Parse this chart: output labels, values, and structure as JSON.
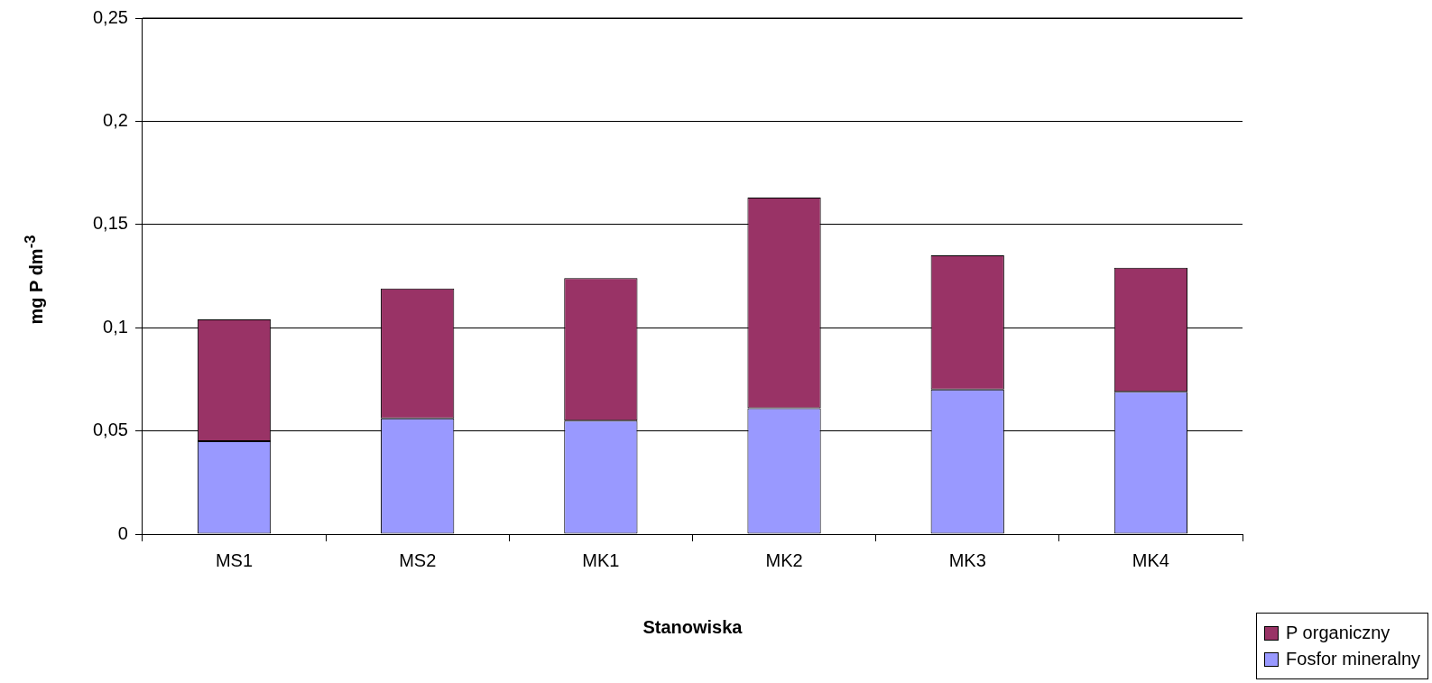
{
  "chart_data": {
    "type": "bar",
    "stacked": true,
    "xlabel": "Stanowiska",
    "ylabel": "mg P dm$^{-3}$",
    "categories": [
      "MS1",
      "MS2",
      "MK1",
      "MK2",
      "MK3",
      "MK4"
    ],
    "series": [
      {
        "name": "Fosfor mineralny",
        "color": "#9999ff",
        "values": [
          0.045,
          0.056,
          0.055,
          0.061,
          0.07,
          0.069
        ]
      },
      {
        "name": "P organiczny",
        "color": "#993366",
        "values": [
          0.059,
          0.063,
          0.069,
          0.102,
          0.065,
          0.06
        ]
      }
    ],
    "ylim": [
      0,
      0.25
    ],
    "yticks": [
      0,
      {
        "value": 0.05,
        "label": "0,05"
      },
      {
        "value": 0.1,
        "label": "0,1"
      },
      {
        "value": 0.15,
        "label": "0,15"
      },
      {
        "value": 0.2,
        "label": "0,2"
      },
      {
        "value": 0.25,
        "label": "0,25"
      }
    ],
    "grid": "y",
    "legend": "bottom right"
  }
}
